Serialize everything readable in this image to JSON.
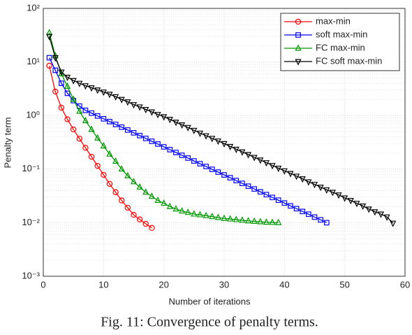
{
  "chart_data": {
    "type": "line",
    "caption": "Fig. 11: Convergence of penalty terms.",
    "xlabel": "Number of iterations",
    "ylabel": "Penalty term",
    "xlim": [
      0,
      60
    ],
    "xticks": [
      0,
      10,
      20,
      30,
      40,
      50,
      60
    ],
    "ylim": [
      0.001,
      100
    ],
    "log_y": true,
    "grid": true,
    "minor_grid": true,
    "legend": "top-right",
    "yticks": [
      {
        "value": 0.001,
        "label": "10⁻³"
      },
      {
        "value": 0.01,
        "label": "10⁻²"
      },
      {
        "value": 0.1,
        "label": "10⁻¹"
      },
      {
        "value": 1,
        "label": "10⁰"
      },
      {
        "value": 10,
        "label": "10¹"
      },
      {
        "value": 100,
        "label": "10²"
      }
    ],
    "series": [
      {
        "name": "max-min",
        "color": "#ff0000",
        "marker": "circle",
        "x": [
          1,
          2,
          3,
          4,
          5,
          6,
          7,
          8,
          9,
          10,
          11,
          12,
          13,
          14,
          15,
          16,
          17,
          18
        ],
        "values": [
          8.5,
          2.8,
          1.4,
          0.85,
          0.55,
          0.37,
          0.25,
          0.17,
          0.115,
          0.078,
          0.053,
          0.037,
          0.026,
          0.019,
          0.014,
          0.0115,
          0.0095,
          0.008
        ]
      },
      {
        "name": "soft max-min",
        "color": "#0000ff",
        "marker": "square",
        "x": [
          1,
          2,
          3,
          4,
          5,
          6,
          7,
          8,
          9,
          10,
          11,
          12,
          13,
          14,
          15,
          16,
          17,
          18,
          19,
          20,
          21,
          22,
          23,
          24,
          25,
          26,
          27,
          28,
          29,
          30,
          31,
          32,
          33,
          34,
          35,
          36,
          37,
          38,
          39,
          40,
          41,
          42,
          43,
          44,
          45,
          46,
          47
        ],
        "values": [
          12,
          7,
          4,
          2.6,
          1.9,
          1.5,
          1.25,
          1.11,
          0.982,
          0.87,
          0.771,
          0.683,
          0.606,
          0.537,
          0.476,
          0.422,
          0.374,
          0.331,
          0.294,
          0.26,
          0.231,
          0.204,
          0.181,
          0.161,
          0.142,
          0.126,
          0.112,
          0.0991,
          0.0878,
          0.0778,
          0.069,
          0.0611,
          0.0542,
          0.048,
          0.0426,
          0.0377,
          0.0334,
          0.0296,
          0.0263,
          0.0233,
          0.0206,
          0.0183,
          0.0162,
          0.0144,
          0.0127,
          0.0113,
          0.01
        ]
      },
      {
        "name": "FC max-min",
        "color": "#009900",
        "marker": "triangle-up",
        "x": [
          1,
          2,
          3,
          4,
          5,
          6,
          7,
          8,
          9,
          10,
          11,
          12,
          13,
          14,
          15,
          16,
          17,
          18,
          19,
          20,
          21,
          22,
          23,
          24,
          25,
          26,
          27,
          28,
          29,
          30,
          31,
          32,
          33,
          34,
          35,
          36,
          37,
          38,
          39
        ],
        "values": [
          35,
          13,
          6,
          3.5,
          2,
          1.2,
          0.8,
          0.55,
          0.38,
          0.27,
          0.19,
          0.14,
          0.1,
          0.075,
          0.058,
          0.046,
          0.037,
          0.031,
          0.026,
          0.023,
          0.02,
          0.018,
          0.0165,
          0.0155,
          0.0145,
          0.014,
          0.0135,
          0.013,
          0.0125,
          0.012,
          0.0117,
          0.0114,
          0.0111,
          0.0108,
          0.0106,
          0.0104,
          0.0102,
          0.0101,
          0.01
        ]
      },
      {
        "name": "FC soft max-min",
        "color": "#000000",
        "marker": "triangle-down",
        "x": [
          1,
          2,
          3,
          4,
          5,
          6,
          7,
          8,
          9,
          10,
          11,
          12,
          13,
          14,
          15,
          16,
          17,
          18,
          19,
          20,
          21,
          22,
          23,
          24,
          25,
          26,
          27,
          28,
          29,
          30,
          31,
          32,
          33,
          34,
          35,
          36,
          37,
          38,
          39,
          40,
          41,
          42,
          43,
          44,
          45,
          46,
          47,
          48,
          49,
          50,
          51,
          52,
          53,
          54,
          55,
          56,
          57,
          58
        ],
        "values": [
          30,
          12,
          6.5,
          5.2,
          4.5,
          4,
          3.6,
          3.3,
          3,
          2.75,
          2.5,
          2.25,
          2,
          1.8,
          1.6,
          1.45,
          1.3,
          1.17,
          1.05,
          0.95,
          0.85,
          0.75,
          0.67,
          0.6,
          0.53,
          0.47,
          0.42,
          0.375,
          0.335,
          0.3,
          0.265,
          0.235,
          0.21,
          0.187,
          0.166,
          0.148,
          0.132,
          0.117,
          0.104,
          0.093,
          0.083,
          0.074,
          0.066,
          0.058,
          0.052,
          0.046,
          0.041,
          0.037,
          0.033,
          0.029,
          0.026,
          0.023,
          0.0205,
          0.018,
          0.016,
          0.0145,
          0.0128,
          0.0098
        ]
      }
    ]
  }
}
